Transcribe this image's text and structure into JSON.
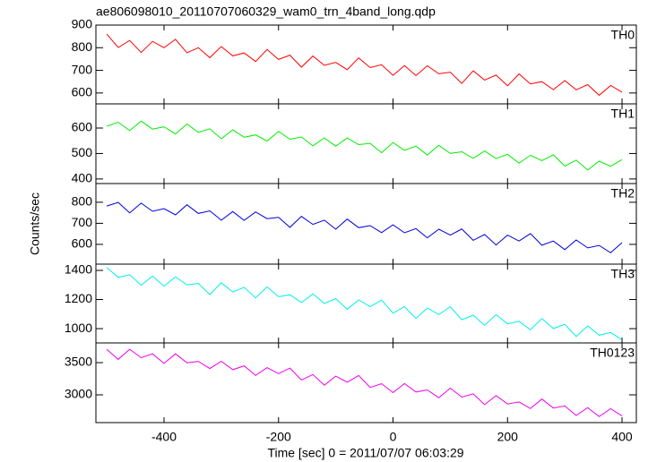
{
  "chart_data": [
    {
      "type": "line",
      "title": "ae806098010_20110707060329_wam0_trn_4band_long.qdp",
      "x": [
        -500,
        -480,
        -460,
        -440,
        -420,
        -400,
        -380,
        -360,
        -340,
        -320,
        -300,
        -280,
        -260,
        -240,
        -220,
        -200,
        -180,
        -160,
        -140,
        -120,
        -100,
        -80,
        -60,
        -40,
        -20,
        0,
        20,
        40,
        60,
        80,
        100,
        120,
        140,
        160,
        180,
        200,
        220,
        240,
        260,
        280,
        300,
        320,
        340,
        360,
        380,
        400
      ],
      "series": [
        {
          "name": "TH0",
          "color": "#ff0000",
          "values": [
            860,
            801,
            832,
            779,
            828,
            800,
            837,
            778,
            800,
            756,
            805,
            764,
            777,
            739,
            792,
            748,
            767,
            714,
            763,
            722,
            735,
            703,
            755,
            712,
            725,
            678,
            721,
            677,
            720,
            685,
            692,
            642,
            698,
            657,
            679,
            632,
            684,
            640,
            650,
            615,
            655,
            614,
            637,
            590,
            633,
            604
          ]
        }
      ],
      "xlim": [
        -519,
        425
      ],
      "ylim": [
        552,
        900
      ],
      "yticks": [
        600,
        700,
        800,
        900
      ]
    },
    {
      "type": "line",
      "x": [
        -500,
        -480,
        -460,
        -440,
        -420,
        -400,
        -380,
        -360,
        -340,
        -320,
        -300,
        -280,
        -260,
        -240,
        -220,
        -200,
        -180,
        -160,
        -140,
        -120,
        -100,
        -80,
        -60,
        -40,
        -20,
        0,
        20,
        40,
        60,
        80,
        100,
        120,
        140,
        160,
        180,
        200,
        220,
        240,
        260,
        280,
        300,
        320,
        340,
        360,
        380,
        400
      ],
      "series": [
        {
          "name": "TH1",
          "color": "#00ee00",
          "values": [
            607,
            623,
            590,
            627,
            596,
            605,
            577,
            616,
            583,
            597,
            558,
            593,
            564,
            573,
            549,
            587,
            556,
            565,
            530,
            561,
            529,
            561,
            535,
            540,
            503,
            543,
            513,
            529,
            494,
            532,
            500,
            507,
            481,
            510,
            480,
            497,
            462,
            493,
            472,
            495,
            451,
            474,
            435,
            470,
            450,
            476
          ]
        }
      ],
      "xlim": [
        -519,
        425
      ],
      "ylim": [
        382,
        695
      ],
      "yticks": [
        400,
        500,
        600
      ]
    },
    {
      "type": "line",
      "ylabel": "Counts/sec",
      "x": [
        -500,
        -480,
        -460,
        -440,
        -420,
        -400,
        -380,
        -360,
        -340,
        -320,
        -300,
        -280,
        -260,
        -240,
        -220,
        -200,
        -180,
        -160,
        -140,
        -120,
        -100,
        -80,
        -60,
        -40,
        -20,
        0,
        20,
        40,
        60,
        80,
        100,
        120,
        140,
        160,
        180,
        200,
        220,
        240,
        260,
        280,
        300,
        320,
        340,
        360,
        380,
        400
      ],
      "series": [
        {
          "name": "TH2",
          "color": "#0000dd",
          "values": [
            782,
            799,
            750,
            796,
            757,
            770,
            740,
            788,
            747,
            759,
            715,
            756,
            714,
            754,
            722,
            728,
            681,
            733,
            695,
            715,
            672,
            720,
            679,
            689,
            656,
            693,
            655,
            675,
            631,
            672,
            644,
            673,
            619,
            647,
            597,
            644,
            616,
            651,
            596,
            616,
            575,
            621,
            583,
            595,
            560,
            608
          ]
        }
      ],
      "xlim": [
        -519,
        425
      ],
      "ylim": [
        506,
        889
      ],
      "yticks": [
        600,
        700,
        800
      ]
    },
    {
      "type": "line",
      "x": [
        -500,
        -480,
        -460,
        -440,
        -420,
        -400,
        -380,
        -360,
        -340,
        -320,
        -300,
        -280,
        -260,
        -240,
        -220,
        -200,
        -180,
        -160,
        -140,
        -120,
        -100,
        -80,
        -60,
        -40,
        -20,
        0,
        20,
        40,
        60,
        80,
        100,
        120,
        140,
        160,
        180,
        200,
        220,
        240,
        260,
        280,
        300,
        320,
        340,
        360,
        380,
        400
      ],
      "series": [
        {
          "name": "TH3",
          "color": "#00eeee",
          "values": [
            1420,
            1352,
            1370,
            1298,
            1361,
            1292,
            1356,
            1301,
            1311,
            1234,
            1315,
            1252,
            1284,
            1211,
            1287,
            1219,
            1233,
            1179,
            1238,
            1174,
            1206,
            1134,
            1197,
            1151,
            1196,
            1106,
            1151,
            1070,
            1142,
            1097,
            1151,
            1061,
            1092,
            1024,
            1096,
            1033,
            1051,
            992,
            1069,
            1001,
            1029,
            946,
            1019,
            955,
            974,
            924
          ]
        }
      ],
      "xlim": [
        -519,
        425
      ],
      "ylim": [
        902,
        1443
      ],
      "yticks": [
        1000,
        1200,
        1400
      ]
    },
    {
      "type": "line",
      "xlabel": "Time [sec] 0 = 2011/07/07 06:03:29",
      "x": [
        -500,
        -480,
        -460,
        -440,
        -420,
        -400,
        -380,
        -360,
        -340,
        -320,
        -300,
        -280,
        -260,
        -240,
        -220,
        -200,
        -180,
        -160,
        -140,
        -120,
        -100,
        -80,
        -60,
        -40,
        -20,
        0,
        20,
        40,
        60,
        80,
        100,
        120,
        140,
        160,
        180,
        200,
        220,
        240,
        260,
        280,
        300,
        320,
        340,
        360,
        380,
        400
      ],
      "series": [
        {
          "name": "TH0123",
          "color": "#ee00ee",
          "values": [
            3707,
            3550,
            3708,
            3577,
            3636,
            3488,
            3637,
            3498,
            3520,
            3408,
            3521,
            3391,
            3450,
            3301,
            3423,
            3329,
            3415,
            3231,
            3316,
            3150,
            3290,
            3196,
            3300,
            3115,
            3174,
            3035,
            3175,
            3045,
            3076,
            2955,
            3104,
            2965,
            3015,
            2848,
            2988,
            2858,
            2890,
            2787,
            2935,
            2796,
            2828,
            2680,
            2802,
            2662,
            2784,
            2672
          ]
        }
      ],
      "xlim": [
        -519,
        425
      ],
      "ylim": [
        2569,
        3806
      ],
      "yticks": [
        3000,
        3500
      ],
      "xticks": [
        -400,
        -200,
        0,
        200,
        400
      ]
    }
  ]
}
